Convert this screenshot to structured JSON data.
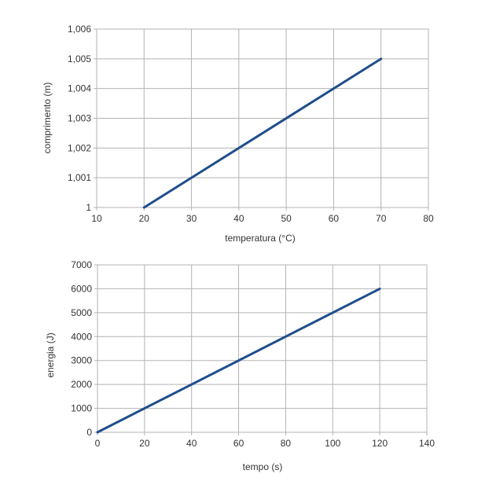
{
  "chart_data": [
    {
      "type": "line",
      "xlabel": "temperatura (°C)",
      "ylabel": "comprimento (m)",
      "xlim": [
        10,
        80
      ],
      "ylim": [
        1,
        1.006
      ],
      "x_ticks": [
        "10",
        "20",
        "30",
        "40",
        "50",
        "60",
        "70",
        "80"
      ],
      "y_ticks": [
        "1",
        "1,001",
        "1,002",
        "1,003",
        "1,004",
        "1,005",
        "1,006"
      ],
      "grid": true,
      "line_color": "#1f4e8c",
      "series": [
        {
          "x": [
            20,
            70
          ],
          "y": [
            1.0,
            1.005
          ]
        }
      ]
    },
    {
      "type": "line",
      "xlabel": "tempo (s)",
      "ylabel": "energia (J)",
      "xlim": [
        0,
        140
      ],
      "ylim": [
        0,
        7000
      ],
      "x_ticks": [
        "0",
        "20",
        "40",
        "60",
        "80",
        "100",
        "120",
        "140"
      ],
      "y_ticks": [
        "0",
        "1000",
        "2000",
        "3000",
        "4000",
        "5000",
        "6000",
        "7000"
      ],
      "grid": true,
      "line_color": "#1f4e8c",
      "series": [
        {
          "x": [
            0,
            120
          ],
          "y": [
            0,
            6000
          ]
        }
      ]
    }
  ]
}
